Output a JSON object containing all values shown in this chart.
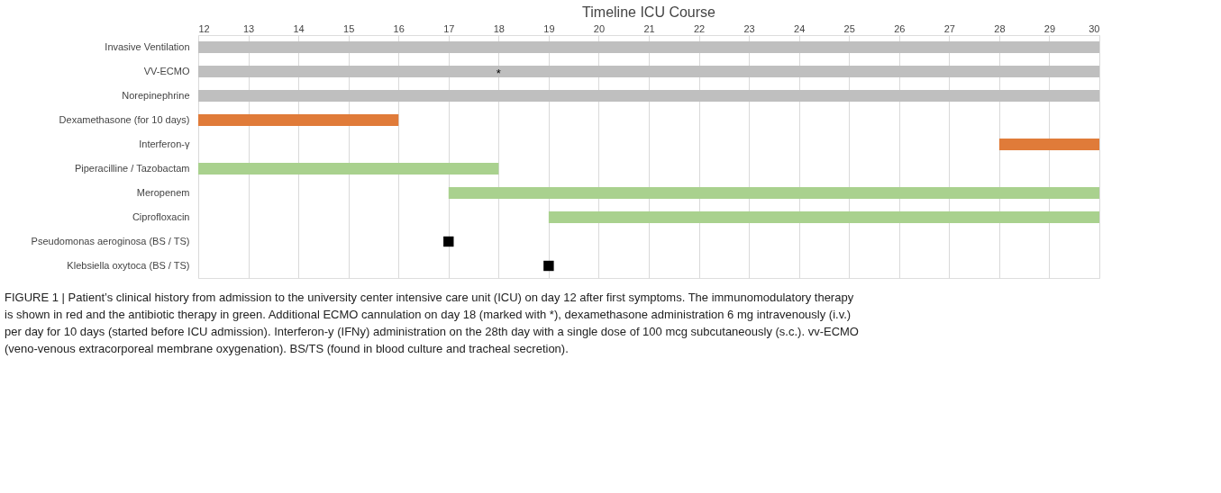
{
  "chart_data": {
    "type": "bar",
    "orientation": "horizontal",
    "title": "Timeline ICU Course",
    "categories": [
      "Invasive Ventilation",
      "VV-ECMO",
      "Norepinephrine",
      "Dexamethasone (for 10 days)",
      "Interferon-γ",
      "Piperacilline / Tazobactam",
      "Meropenem",
      "Ciprofloxacin",
      "Pseudomonas aeroginosa (BS / TS)",
      "Klebsiella oxytoca (BS / TS)"
    ],
    "series": [
      {
        "base": [
          12,
          12,
          12,
          12,
          28,
          12,
          17,
          19,
          null,
          null
        ],
        "values": [
          18,
          18,
          18,
          4,
          2,
          6,
          13,
          11,
          null,
          null
        ],
        "colors": [
          "#bfbfbf",
          "#bfbfbf",
          "#bfbfbf",
          "#e07b39",
          "#e07b39",
          "#a9d18e",
          "#a9d18e",
          "#a9d18e",
          null,
          null
        ]
      },
      {
        "type": "scatter",
        "marker": "square",
        "color": "#000000",
        "values": [
          null,
          null,
          null,
          null,
          null,
          null,
          null,
          null,
          17,
          19
        ]
      }
    ],
    "xlim": [
      12,
      30
    ],
    "xticks": [
      12,
      13,
      14,
      15,
      16,
      17,
      18,
      19,
      20,
      21,
      22,
      23,
      24,
      25,
      26,
      27,
      28,
      29,
      30
    ],
    "grid": "x",
    "annotations": [
      {
        "text": "*",
        "x": 18,
        "y": "VV-ECMO"
      },
      "FIGURE 1 | Patient’s clinical history from admission to the university center intensive care unit (ICU) on day 12 after first symptoms. The immunomodulatory therapy is shown in red and the antibiotic therapy in green. Additional ECMO cannulation on day 18 (marked with *), dexamethasone administration 6 mg intravenously (i.v.) per day for 10 days (started before ICU admission). Interferon-y (IFNy) administration on the 28th day with a single dose of 100 mcg subcutaneously (s.c.). vv-ECMO (veno-venous extracorporeal membrane oxygenation). BS/TS (found in blood culture and tracheal secretion)."
    ]
  }
}
